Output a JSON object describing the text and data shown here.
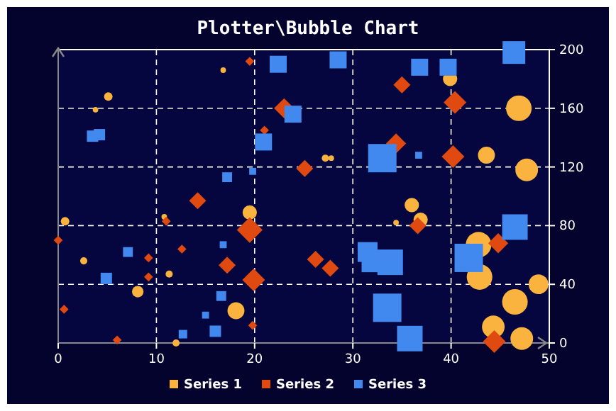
{
  "chart_data": {
    "type": "bubble",
    "title": "Plotter\\Bubble Chart",
    "xlim": [
      0,
      50
    ],
    "xticks": [
      0,
      10,
      20,
      30,
      40,
      50
    ],
    "ylim": [
      0,
      200
    ],
    "yticks": [
      0,
      40,
      80,
      120,
      160,
      200
    ],
    "grid": true,
    "legend": "bottom",
    "series": [
      {
        "name": "Series 1",
        "color": "#fbb33f",
        "marker": "circle",
        "x": [
          16.8,
          5.1,
          3.8,
          0.7,
          2.6,
          8.1,
          11.3,
          10.8,
          19.5,
          18.1,
          12.0,
          27.2,
          27.8,
          36,
          36.9,
          34.4,
          39.9,
          46.9,
          43.6,
          47.7,
          42.8,
          42.9,
          48.9,
          46.5,
          44.3,
          47.2
        ],
        "values": [
          186,
          168,
          159,
          83,
          56,
          35,
          47,
          86,
          89,
          22,
          0,
          126,
          126,
          94,
          84,
          82,
          180,
          160,
          128,
          118,
          67,
          45,
          40,
          28,
          11,
          3
        ],
        "sizes": [
          0.03,
          0.07,
          0.03,
          0.07,
          0.05,
          0.13,
          0.05,
          0.03,
          0.2,
          0.28,
          0.05,
          0.05,
          0.03,
          0.2,
          0.2,
          0.03,
          0.2,
          0.64,
          0.28,
          0.5,
          0.64,
          0.64,
          0.38,
          0.64,
          0.5,
          0.5
        ]
      },
      {
        "name": "Series 2",
        "color": "#e04a10",
        "marker": "diamond",
        "x": [
          19.5,
          23,
          21,
          0,
          0.6,
          6,
          14.2,
          9.2,
          9.2,
          12.6,
          11,
          19.5,
          19.9,
          17.2,
          19.8,
          35,
          40.4,
          34.4,
          40.2,
          25.1,
          36.6,
          26.2,
          27.7,
          44.8,
          44.4
        ],
        "values": [
          192,
          160,
          145,
          70,
          23,
          2,
          97,
          58,
          45,
          64,
          83,
          77,
          43,
          53,
          12,
          176,
          164,
          136,
          127,
          119,
          80,
          57,
          51,
          68,
          1
        ],
        "sizes": [
          0.05,
          0.25,
          0.05,
          0.05,
          0.05,
          0.05,
          0.18,
          0.05,
          0.05,
          0.05,
          0.05,
          0.41,
          0.32,
          0.18,
          0.05,
          0.18,
          0.32,
          0.25,
          0.32,
          0.18,
          0.18,
          0.18,
          0.18,
          0.25,
          0.32
        ]
      },
      {
        "name": "Series 3",
        "color": "#4189ee",
        "marker": "square",
        "x": [
          22.4,
          28.5,
          36.8,
          39.7,
          46.4,
          23.9,
          20.9,
          3.5,
          4.2,
          17.2,
          19.8,
          33,
          36.7,
          7.1,
          4.9,
          16.8,
          16.6,
          15.0,
          12.7,
          16.0,
          31.5,
          31.9,
          33.8,
          41.8,
          46.5,
          33.5,
          35.8
        ],
        "values": [
          190,
          193,
          188,
          188,
          198,
          156,
          137,
          141,
          142,
          113,
          117,
          126,
          128,
          62,
          44,
          67,
          32,
          19,
          6,
          8,
          62,
          55,
          55,
          58,
          79,
          24,
          3
        ],
        "sizes": [
          0.36,
          0.36,
          0.36,
          0.36,
          0.64,
          0.36,
          0.36,
          0.16,
          0.16,
          0.12,
          0.06,
          1,
          0.06,
          0.12,
          0.16,
          0.06,
          0.12,
          0.06,
          0.09,
          0.16,
          0.49,
          0.49,
          0.81,
          1,
          0.81,
          1,
          0.81
        ]
      }
    ]
  }
}
